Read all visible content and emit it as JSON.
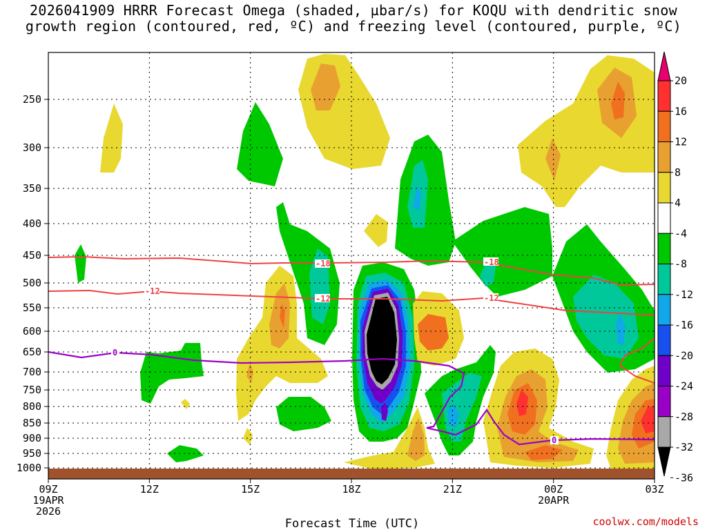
{
  "chart_data": {
    "type": "contour-time-height",
    "title_line1": "2026041909 HRRR Forecast Omega (shaded, µbar/s) for KOQU with dendritic snow",
    "title_line2": "growth region (contoured, red, ºC) and freezing level (contoured, purple, ºC)",
    "xlabel": "Forecast Time (UTC)",
    "credit": "coolwx.com/models",
    "x_ticks": [
      {
        "label": "09Z",
        "sub1": "19APR",
        "sub2": "2026"
      },
      {
        "label": "12Z",
        "sub1": "",
        "sub2": ""
      },
      {
        "label": "15Z",
        "sub1": "",
        "sub2": ""
      },
      {
        "label": "18Z",
        "sub1": "",
        "sub2": ""
      },
      {
        "label": "21Z",
        "sub1": "",
        "sub2": ""
      },
      {
        "label": "00Z",
        "sub1": "20APR",
        "sub2": ""
      },
      {
        "label": "03Z",
        "sub1": "",
        "sub2": ""
      }
    ],
    "y_ticks": [
      "250",
      "300",
      "350",
      "400",
      "450",
      "500",
      "550",
      "600",
      "650",
      "700",
      "750",
      "800",
      "850",
      "900",
      "950",
      "1000"
    ],
    "y_values": [
      250,
      300,
      350,
      400,
      450,
      500,
      550,
      600,
      650,
      700,
      750,
      800,
      850,
      900,
      950,
      1000
    ],
    "x_hours": [
      0,
      3,
      6,
      9,
      12,
      15,
      18
    ],
    "y_range_hpa": [
      1030,
      200
    ],
    "colorbar": {
      "labels": [
        "20",
        "16",
        "12",
        "8",
        "4",
        "-4",
        "-8",
        "-12",
        "-16",
        "-20",
        "-24",
        "-28",
        "-32",
        "-36"
      ],
      "colors": [
        "#e8006e",
        "#ff3030",
        "#f07020",
        "#e8a030",
        "#e8d830",
        "#ffffff",
        "#00c800",
        "#00c89a",
        "#10a8e8",
        "#1850f0",
        "#7000c8",
        "#9a00c8",
        "#a8a8a8",
        "#000000"
      ]
    },
    "contour_labels": {
      "red": [
        "-18",
        "-12",
        "-12",
        "-18",
        "-12"
      ],
      "purple": [
        "0",
        "0"
      ]
    }
  }
}
